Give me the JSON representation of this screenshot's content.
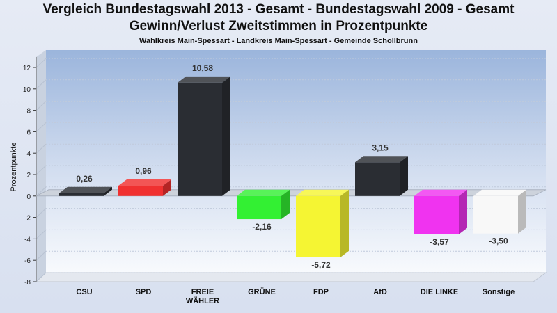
{
  "header": {
    "title_line1": "Vergleich Bundestagswahl 2013 - Gesamt - Bundestagswahl 2009 - Gesamt",
    "title_line2": "Gewinn/Verlust Zweitstimmen in Prozentpunkte",
    "subtitle": "Wahlkreis Main-Spessart - Landkreis Main-Spessart - Gemeinde Schollbrunn"
  },
  "chart_data": {
    "type": "bar",
    "title": "Vergleich Bundestagswahl 2013 - Gesamt - Bundestagswahl 2009 - Gesamt",
    "subtitle": "Gewinn/Verlust Zweitstimmen in Prozentpunkte",
    "ylabel": "Prozentpunkte",
    "xlabel": "",
    "ylim": [
      -8,
      12
    ],
    "yticks": [
      -8,
      -6,
      -4,
      -2,
      0,
      2,
      4,
      6,
      8,
      10,
      12
    ],
    "grid": true,
    "categories": [
      [
        "CSU"
      ],
      [
        "SPD"
      ],
      [
        "FREIE",
        "WÄHLER"
      ],
      [
        "GRÜNE"
      ],
      [
        "FDP"
      ],
      [
        "AfD"
      ],
      [
        "DIE LINKE"
      ],
      [
        "Sonstige"
      ]
    ],
    "values": [
      0.26,
      0.96,
      10.58,
      -2.16,
      -5.72,
      3.15,
      -3.57,
      -3.5
    ],
    "value_labels": [
      "0,26",
      "0,96",
      "10,58",
      "-2,16",
      "-5,72",
      "3,15",
      "-3,57",
      "-3,50"
    ],
    "colors": [
      "#2a2d33",
      "#f03030",
      "#2a2d33",
      "#33f033",
      "#f5f533",
      "#2a2d33",
      "#f033f0",
      "#f8f8f8"
    ]
  }
}
